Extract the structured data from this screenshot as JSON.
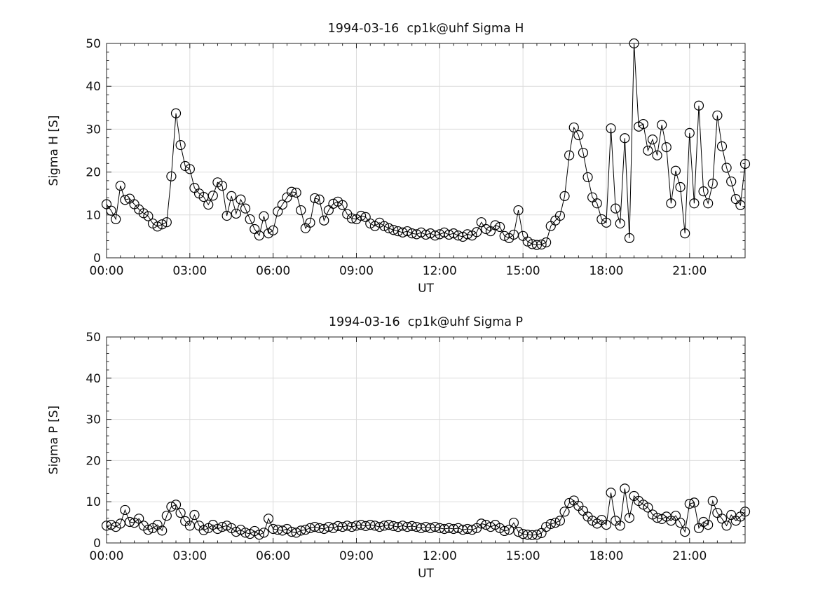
{
  "styles": {
    "line_color": "#000000",
    "marker_color": "#000000",
    "grid_color": "#dcdcdc",
    "axis_color": "#222222",
    "text_color": "#111111",
    "background": "#ffffff"
  },
  "chart_data": [
    {
      "type": "line",
      "title": "1994-03-16  cp1k@uhf Sigma H",
      "xlabel": "UT",
      "ylabel": "Sigma H [S]",
      "xlim_hours": [
        0,
        23
      ],
      "ylim": [
        0,
        50
      ],
      "grid": true,
      "legend": "none",
      "marker": "open-circle",
      "x_start_hour": 0,
      "x_step_minutes": 10,
      "xtick_hours": [
        0,
        3,
        6,
        9,
        12,
        15,
        18,
        21
      ],
      "xtick_labels": [
        "00:00",
        "03:00",
        "06:00",
        "09:00",
        "12:00",
        "15:00",
        "18:00",
        "21:00"
      ],
      "xminor_step_hours": 0.5,
      "yticks": [
        0,
        10,
        20,
        30,
        40,
        50
      ],
      "yminor_step": 2,
      "values": [
        12.5,
        11.0,
        9.0,
        16.8,
        13.5,
        13.8,
        12.5,
        11.3,
        10.4,
        9.7,
        8.0,
        7.3,
        7.8,
        8.3,
        19.0,
        33.7,
        26.3,
        21.4,
        20.7,
        16.3,
        15.0,
        14.2,
        12.4,
        14.5,
        17.6,
        16.8,
        9.8,
        14.4,
        10.3,
        13.6,
        11.5,
        9.0,
        6.7,
        5.2,
        9.7,
        5.7,
        6.4,
        10.8,
        12.4,
        14.1,
        15.4,
        15.2,
        11.1,
        6.9,
        8.2,
        13.9,
        13.6,
        8.7,
        11.1,
        12.6,
        13.1,
        12.3,
        10.2,
        9.2,
        9.0,
        9.8,
        9.5,
        8.0,
        7.4,
        8.2,
        7.4,
        6.9,
        6.5,
        6.2,
        5.9,
        6.2,
        5.7,
        5.5,
        5.9,
        5.4,
        5.7,
        5.2,
        5.5,
        5.9,
        5.4,
        5.7,
        5.2,
        4.9,
        5.5,
        5.2,
        6.0,
        8.3,
        6.7,
        6.2,
        7.6,
        7.2,
        5.1,
        4.6,
        5.4,
        11.1,
        5.1,
        3.8,
        3.2,
        3.0,
        3.1,
        3.6,
        7.4,
        8.7,
        9.8,
        14.4,
        23.9,
        30.4,
        28.6,
        24.5,
        18.8,
        14.1,
        12.7,
        9.0,
        8.2,
        30.2,
        11.5,
        8.0,
        27.9,
        4.6,
        50.0,
        30.6,
        31.2,
        25.0,
        27.6,
        23.9,
        31.0,
        25.8,
        12.7,
        20.3,
        16.5,
        5.7,
        29.1,
        12.7,
        35.5,
        15.5,
        12.7,
        17.3,
        33.2,
        26.0,
        21.0,
        17.8,
        13.7,
        12.3,
        21.9
      ]
    },
    {
      "type": "line",
      "title": "1994-03-16  cp1k@uhf Sigma P",
      "xlabel": "UT",
      "ylabel": "Sigma P [S]",
      "xlim_hours": [
        0,
        23
      ],
      "ylim": [
        0,
        50
      ],
      "grid": true,
      "legend": "none",
      "marker": "open-circle",
      "x_start_hour": 0,
      "x_step_minutes": 10,
      "xtick_hours": [
        0,
        3,
        6,
        9,
        12,
        15,
        18,
        21
      ],
      "xtick_labels": [
        "00:00",
        "03:00",
        "06:00",
        "09:00",
        "12:00",
        "15:00",
        "18:00",
        "21:00"
      ],
      "xminor_step_hours": 0.5,
      "yticks": [
        0,
        10,
        20,
        30,
        40,
        50
      ],
      "yminor_step": 2,
      "values": [
        4.2,
        4.4,
        3.9,
        4.7,
        8.0,
        5.1,
        4.9,
        5.9,
        4.2,
        3.2,
        3.6,
        4.4,
        3.0,
        6.6,
        8.8,
        9.3,
        7.3,
        5.3,
        4.2,
        6.8,
        4.2,
        3.1,
        3.6,
        4.4,
        3.4,
        3.9,
        4.2,
        3.6,
        2.7,
        3.2,
        2.5,
        2.2,
        2.9,
        2.0,
        2.5,
        5.9,
        3.4,
        3.2,
        3.0,
        3.4,
        2.7,
        2.5,
        3.0,
        3.2,
        3.6,
        3.9,
        3.6,
        3.4,
        3.9,
        3.6,
        4.1,
        3.9,
        4.2,
        3.9,
        4.2,
        4.4,
        4.1,
        4.4,
        4.2,
        3.9,
        4.2,
        4.4,
        4.1,
        3.9,
        4.2,
        3.9,
        4.1,
        3.9,
        3.6,
        3.9,
        3.6,
        3.9,
        3.6,
        3.4,
        3.6,
        3.4,
        3.6,
        3.2,
        3.4,
        3.2,
        3.6,
        4.7,
        4.4,
        3.9,
        4.4,
        3.6,
        2.9,
        3.2,
        4.9,
        2.7,
        2.2,
        2.0,
        1.9,
        2.0,
        2.4,
        3.9,
        4.6,
        4.9,
        5.4,
        7.6,
        9.7,
        10.3,
        9.0,
        7.8,
        6.4,
        5.4,
        4.7,
        5.6,
        4.4,
        12.2,
        5.4,
        4.2,
        13.2,
        6.1,
        11.4,
        10.2,
        9.3,
        8.6,
        6.9,
        6.1,
        5.8,
        6.4,
        5.4,
        6.6,
        4.9,
        2.7,
        9.5,
        9.8,
        3.6,
        5.1,
        4.4,
        10.2,
        7.3,
        5.9,
        4.2,
        6.8,
        5.4,
        6.4,
        7.6
      ]
    }
  ]
}
